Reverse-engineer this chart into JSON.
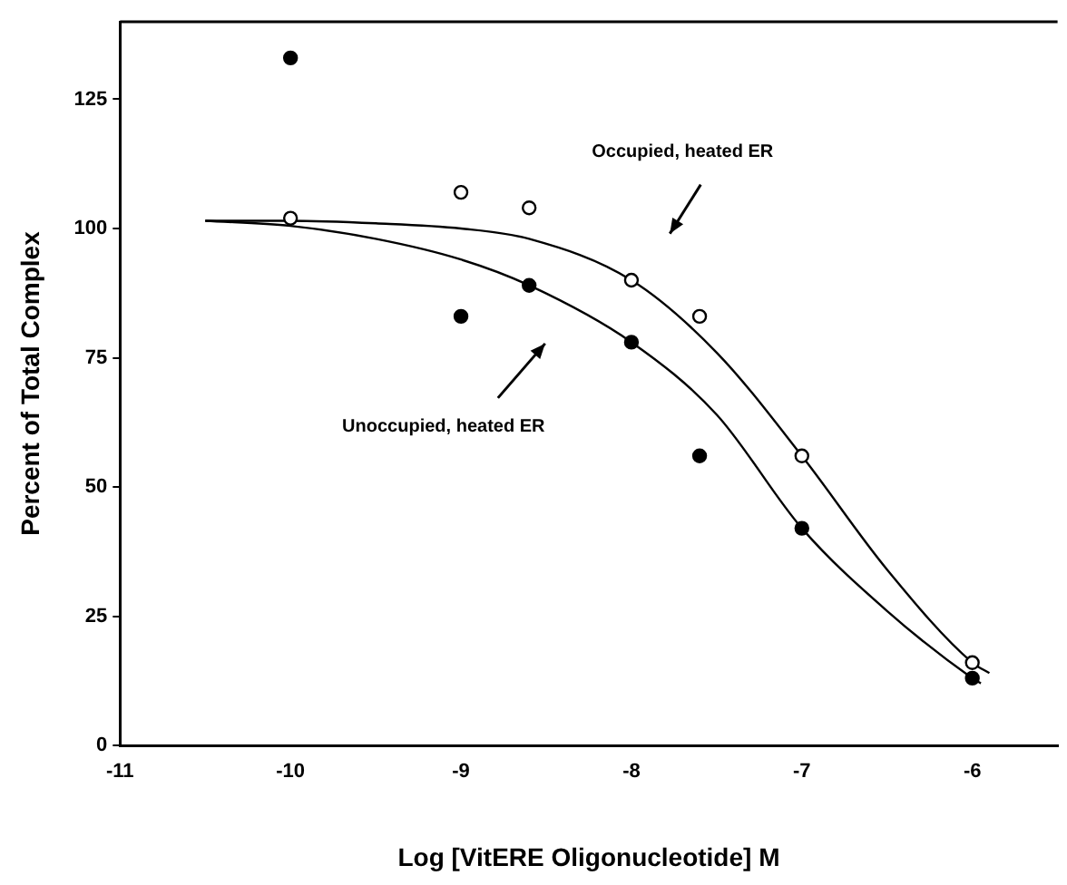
{
  "chart_data": {
    "type": "scatter",
    "xlabel": "Log [VitERE Oligonucleotide] M",
    "ylabel": "Percent of Total Complex",
    "xlim": [
      -11,
      -5.5
    ],
    "xticks": [
      -11,
      -10,
      -9,
      -8,
      -7,
      -6
    ],
    "ylim": [
      0,
      140
    ],
    "yticks": [
      0,
      25,
      50,
      75,
      100,
      125
    ],
    "grid": false,
    "legend": false,
    "series": [
      {
        "marker": "circle",
        "color": "#000000",
        "x": [
          -10,
          -9,
          -8.6,
          -8,
          -7.6,
          -7,
          -6
        ],
        "values": [
          133,
          83,
          89,
          78,
          56,
          42,
          13
        ]
      },
      {
        "marker": "circle",
        "color": "#ffffff",
        "x": [
          -10,
          -9,
          -8.6,
          -8,
          -7.6,
          -7,
          -6
        ],
        "values": [
          102,
          107,
          104,
          90,
          83,
          56,
          16
        ]
      },
      {
        "type": "line",
        "color": "#000000",
        "x": [
          -10.5,
          -10,
          -9.5,
          -9,
          -8.6,
          -8,
          -7.5,
          -7,
          -6.5,
          -6,
          -5.9
        ],
        "values": [
          101.5,
          101.5,
          101,
          100,
          98,
          90,
          76,
          56,
          34,
          16,
          14
        ]
      },
      {
        "type": "line",
        "color": "#000000",
        "x": [
          -10.5,
          -10,
          -9.5,
          -9,
          -8.6,
          -8,
          -7.5,
          -7,
          -6.5,
          -6,
          -5.95
        ],
        "values": [
          101.5,
          100.5,
          98,
          94,
          89,
          78,
          64,
          42,
          26,
          13,
          12
        ]
      }
    ],
    "annotations": [
      "Occupied, heated ER",
      "Unoccupied, heated ER"
    ]
  }
}
